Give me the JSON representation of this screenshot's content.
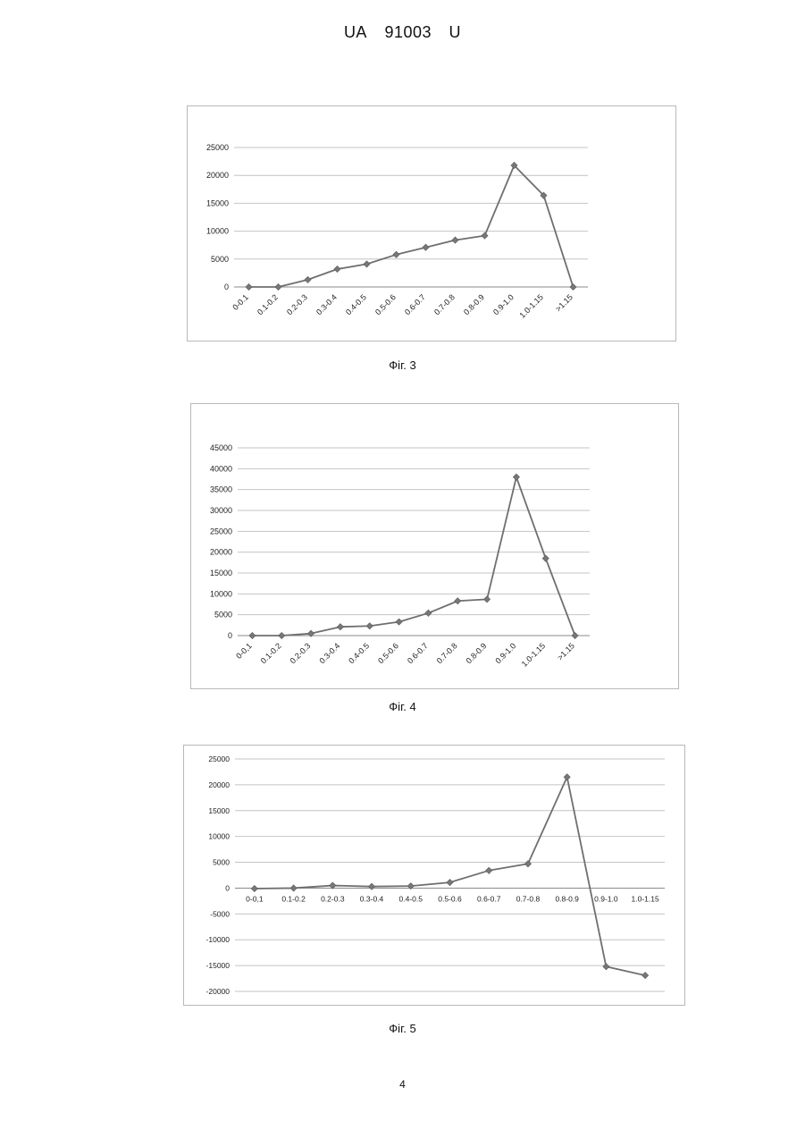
{
  "header": {
    "doc_type": "UA",
    "doc_number": "91003",
    "kind_code": "U"
  },
  "page_number": "4",
  "figures": [
    {
      "caption": "Фіг. 3"
    },
    {
      "caption": "Фіг. 4"
    },
    {
      "caption": "Фіг. 5"
    }
  ],
  "chart_data": [
    {
      "type": "line",
      "categories": [
        "0-0.1",
        "0.1-0.2",
        "0.2-0.3",
        "0.3-0.4",
        "0.4-0.5",
        "0.5-0.6",
        "0.6-0.7",
        "0.7-0.8",
        "0.8-0.9",
        "0.9-1.0",
        "1.0-1.15",
        ">1.15"
      ],
      "values": [
        0,
        0,
        1300,
        3200,
        4100,
        5800,
        7100,
        8400,
        9200,
        21800,
        16400,
        0
      ],
      "ylim": [
        0,
        25000
      ],
      "yticks": [
        "0",
        "5000",
        "10000",
        "15000",
        "20000",
        "25000"
      ],
      "x_label_rotation": "rotated",
      "grid": true,
      "colors": {
        "line": "#6f6f6f",
        "marker": "#777777",
        "grid": "#c4c4c4"
      }
    },
    {
      "type": "line",
      "categories": [
        "0-0,1",
        "0.1-0.2",
        "0.2-0.3",
        "0.3-0.4",
        "0.4-0.5",
        "0.5-0.6",
        "0.6-0.7",
        "0.7-0.8",
        "0.8-0.9",
        "0.9-1.0",
        "1.0-1.15",
        ">1.15"
      ],
      "values": [
        0,
        0,
        500,
        2100,
        2300,
        3300,
        5400,
        8300,
        8700,
        38000,
        18500,
        0
      ],
      "ylim": [
        0,
        45000
      ],
      "yticks": [
        "0",
        "5000",
        "10000",
        "15000",
        "20000",
        "25000",
        "30000",
        "35000",
        "40000",
        "45000"
      ],
      "x_label_rotation": "rotated",
      "grid": true,
      "colors": {
        "line": "#6f6f6f",
        "marker": "#777777",
        "grid": "#c4c4c4"
      }
    },
    {
      "type": "line",
      "categories": [
        "0-0,1",
        "0.1-0.2",
        "0.2-0.3",
        "0.3-0.4",
        "0.4-0.5",
        "0.5-0.6",
        "0.6-0.7",
        "0.7-0.8",
        "0.8-0.9",
        "0.9-1.0",
        "1.0-1.15"
      ],
      "values": [
        -100,
        0,
        500,
        300,
        400,
        1100,
        3400,
        4700,
        21500,
        -15200,
        -16900
      ],
      "ylim": [
        -20000,
        25000
      ],
      "yticks": [
        "-20000",
        "-15000",
        "-10000",
        "-5000",
        "0",
        "5000",
        "10000",
        "15000",
        "20000",
        "25000"
      ],
      "x_label_rotation": "horizontal",
      "grid": true,
      "colors": {
        "line": "#6f6f6f",
        "marker": "#777777",
        "grid": "#c4c4c4"
      }
    }
  ]
}
